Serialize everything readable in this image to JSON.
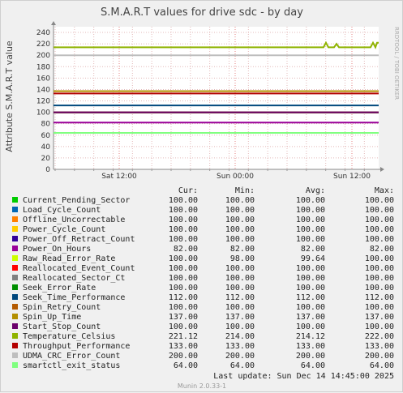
{
  "chart_data": {
    "type": "line",
    "title": "S.M.A.R.T values for drive sdc - by day",
    "ylabel": "Attribute S.M.A.R.T value",
    "ylim": [
      0,
      250
    ],
    "yticks": [
      0,
      20,
      40,
      60,
      80,
      100,
      120,
      140,
      160,
      180,
      200,
      220,
      240
    ],
    "xticks": [
      "Sat 12:00",
      "Sun 00:00",
      "Sun 12:00"
    ],
    "grid": true,
    "series": [
      {
        "name": "Current_Pending_Sector",
        "color": "#00cc00",
        "cur": "100.00",
        "min": "100.00",
        "avg": "100.00",
        "max": "100.00",
        "value": 100
      },
      {
        "name": "Load_Cycle_Count",
        "color": "#0066b3",
        "cur": "100.00",
        "min": "100.00",
        "avg": "100.00",
        "max": "100.00",
        "value": 100
      },
      {
        "name": "Offline_Uncorrectable",
        "color": "#ff8000",
        "cur": "100.00",
        "min": "100.00",
        "avg": "100.00",
        "max": "100.00",
        "value": 100
      },
      {
        "name": "Power_Cycle_Count",
        "color": "#ffcc00",
        "cur": "100.00",
        "min": "100.00",
        "avg": "100.00",
        "max": "100.00",
        "value": 100
      },
      {
        "name": "Power_Off_Retract_Count",
        "color": "#330099",
        "cur": "100.00",
        "min": "100.00",
        "avg": "100.00",
        "max": "100.00",
        "value": 100
      },
      {
        "name": "Power_On_Hours",
        "color": "#990099",
        "cur": "82.00",
        "min": "82.00",
        "avg": "82.00",
        "max": "82.00",
        "value": 82
      },
      {
        "name": "Raw_Read_Error_Rate",
        "color": "#ccff00",
        "cur": "100.00",
        "min": "98.00",
        "avg": "99.64",
        "max": "100.00",
        "value": 100
      },
      {
        "name": "Reallocated_Event_Count",
        "color": "#ff0000",
        "cur": "100.00",
        "min": "100.00",
        "avg": "100.00",
        "max": "100.00",
        "value": 100
      },
      {
        "name": "Reallocated_Sector_Ct",
        "color": "#808080",
        "cur": "100.00",
        "min": "100.00",
        "avg": "100.00",
        "max": "100.00",
        "value": 100
      },
      {
        "name": "Seek_Error_Rate",
        "color": "#008f00",
        "cur": "100.00",
        "min": "100.00",
        "avg": "100.00",
        "max": "100.00",
        "value": 100
      },
      {
        "name": "Seek_Time_Performance",
        "color": "#00487d",
        "cur": "112.00",
        "min": "112.00",
        "avg": "112.00",
        "max": "112.00",
        "value": 112
      },
      {
        "name": "Spin_Retry_Count",
        "color": "#b35a00",
        "cur": "100.00",
        "min": "100.00",
        "avg": "100.00",
        "max": "100.00",
        "value": 100
      },
      {
        "name": "Spin_Up_Time",
        "color": "#b38f00",
        "cur": "137.00",
        "min": "137.00",
        "avg": "137.00",
        "max": "137.00",
        "value": 137
      },
      {
        "name": "Start_Stop_Count",
        "color": "#6b006b",
        "cur": "100.00",
        "min": "100.00",
        "avg": "100.00",
        "max": "100.00",
        "value": 100
      },
      {
        "name": "Temperature_Celsius",
        "color": "#8fb300",
        "cur": "221.12",
        "min": "214.00",
        "avg": "214.12",
        "max": "222.00",
        "value": 214
      },
      {
        "name": "Throughput_Performance",
        "color": "#b30000",
        "cur": "133.00",
        "min": "133.00",
        "avg": "133.00",
        "max": "133.00",
        "value": 133
      },
      {
        "name": "UDMA_CRC_Error_Count",
        "color": "#bebebe",
        "cur": "200.00",
        "min": "200.00",
        "avg": "200.00",
        "max": "200.00",
        "value": 200
      },
      {
        "name": "smartctl_exit_status",
        "color": "#80ff80",
        "cur": "64.00",
        "min": "64.00",
        "avg": "64.00",
        "max": "64.00",
        "value": 64
      }
    ]
  },
  "legend_headers": {
    "cur": "Cur:",
    "min": "Min:",
    "avg": "Avg:",
    "max": "Max:"
  },
  "footer": {
    "last_update": "Last update:  Sun Dec 14 14:45:00 2025",
    "munin": "Munin 2.0.33-1"
  },
  "side_label": "RRDTOOL / TOBI OETIKER"
}
